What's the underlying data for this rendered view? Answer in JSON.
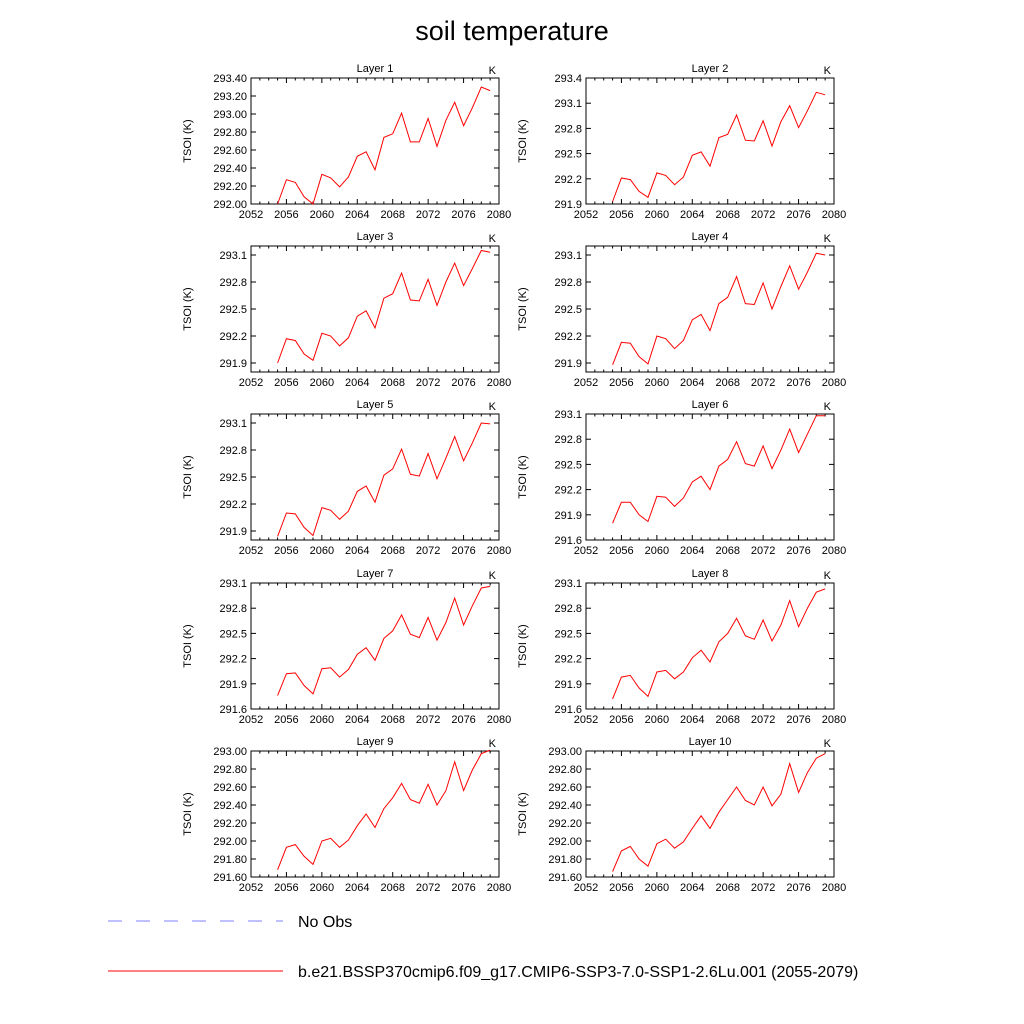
{
  "title": "soil temperature",
  "legend": {
    "obs_label": "No Obs",
    "obs_color": "#8080ff",
    "model_label": "b.e21.BSSP370cmip6.f09_g17.CMIP6-SSP3-7.0-SSP1-2.6Lu.001 (2055-2079)",
    "model_color": "#ff0000"
  },
  "chart_data": [
    {
      "type": "line",
      "title": "Layer 1",
      "unit": "K",
      "ylabel": "TSOI  (K)",
      "xlim": [
        2052,
        2080
      ],
      "x_ticks": [
        "2052",
        "2056",
        "2060",
        "2064",
        "2068",
        "2072",
        "2076",
        "2080"
      ],
      "ylim": [
        292.0,
        293.4
      ],
      "y_ticks": [
        "292.00",
        "292.20",
        "292.40",
        "292.60",
        "292.80",
        "293.00",
        "293.20",
        "293.40"
      ],
      "x": [
        2055,
        2056,
        2057,
        2058,
        2059,
        2060,
        2061,
        2062,
        2063,
        2064,
        2065,
        2066,
        2067,
        2068,
        2069,
        2070,
        2071,
        2072,
        2073,
        2074,
        2075,
        2076,
        2077,
        2078,
        2079
      ],
      "series": [
        {
          "values": [
            292.0,
            292.27,
            292.24,
            292.08,
            292.0,
            292.33,
            292.29,
            292.19,
            292.3,
            292.53,
            292.58,
            292.38,
            292.74,
            292.78,
            293.01,
            292.69,
            292.69,
            292.95,
            292.64,
            292.93,
            293.13,
            292.87,
            293.07,
            293.3,
            293.26
          ]
        }
      ]
    },
    {
      "type": "line",
      "title": "Layer 2",
      "unit": "K",
      "ylabel": "TSOI  (K)",
      "xlim": [
        2052,
        2080
      ],
      "x_ticks": [
        "2052",
        "2056",
        "2060",
        "2064",
        "2068",
        "2072",
        "2076",
        "2080"
      ],
      "ylim": [
        291.9,
        293.4
      ],
      "y_ticks": [
        "291.9",
        "292.2",
        "292.5",
        "292.8",
        "293.1",
        "293.4"
      ],
      "x": [
        2055,
        2056,
        2057,
        2058,
        2059,
        2060,
        2061,
        2062,
        2063,
        2064,
        2065,
        2066,
        2067,
        2068,
        2069,
        2070,
        2071,
        2072,
        2073,
        2074,
        2075,
        2076,
        2077,
        2078,
        2079
      ],
      "series": [
        {
          "values": [
            291.93,
            292.21,
            292.19,
            292.05,
            291.98,
            292.27,
            292.24,
            292.13,
            292.22,
            292.48,
            292.52,
            292.35,
            292.69,
            292.73,
            292.96,
            292.66,
            292.65,
            292.89,
            292.59,
            292.88,
            293.07,
            292.81,
            293.01,
            293.23,
            293.2
          ]
        }
      ]
    },
    {
      "type": "line",
      "title": "Layer 3",
      "unit": "K",
      "ylabel": "TSOI  (K)",
      "xlim": [
        2052,
        2080
      ],
      "x_ticks": [
        "2052",
        "2056",
        "2060",
        "2064",
        "2068",
        "2072",
        "2076",
        "2080"
      ],
      "ylim": [
        291.8,
        293.2
      ],
      "y_ticks": [
        "291.9",
        "292.2",
        "292.5",
        "292.8",
        "293.1"
      ],
      "x": [
        2055,
        2056,
        2057,
        2058,
        2059,
        2060,
        2061,
        2062,
        2063,
        2064,
        2065,
        2066,
        2067,
        2068,
        2069,
        2070,
        2071,
        2072,
        2073,
        2074,
        2075,
        2076,
        2077,
        2078,
        2079
      ],
      "series": [
        {
          "values": [
            291.9,
            292.17,
            292.15,
            292.0,
            291.93,
            292.23,
            292.2,
            292.09,
            292.18,
            292.42,
            292.48,
            292.29,
            292.62,
            292.67,
            292.9,
            292.6,
            292.59,
            292.83,
            292.54,
            292.8,
            293.01,
            292.76,
            292.95,
            293.15,
            293.13
          ]
        }
      ]
    },
    {
      "type": "line",
      "title": "Layer 4",
      "unit": "K",
      "ylabel": "TSOI  (K)",
      "xlim": [
        2052,
        2080
      ],
      "x_ticks": [
        "2052",
        "2056",
        "2060",
        "2064",
        "2068",
        "2072",
        "2076",
        "2080"
      ],
      "ylim": [
        291.8,
        293.2
      ],
      "y_ticks": [
        "291.9",
        "292.2",
        "292.5",
        "292.8",
        "293.1"
      ],
      "x": [
        2055,
        2056,
        2057,
        2058,
        2059,
        2060,
        2061,
        2062,
        2063,
        2064,
        2065,
        2066,
        2067,
        2068,
        2069,
        2070,
        2071,
        2072,
        2073,
        2074,
        2075,
        2076,
        2077,
        2078,
        2079
      ],
      "series": [
        {
          "values": [
            291.88,
            292.13,
            292.12,
            291.97,
            291.89,
            292.2,
            292.17,
            292.06,
            292.15,
            292.38,
            292.44,
            292.26,
            292.56,
            292.63,
            292.86,
            292.56,
            292.55,
            292.79,
            292.5,
            292.75,
            292.98,
            292.72,
            292.91,
            293.12,
            293.1
          ]
        }
      ]
    },
    {
      "type": "line",
      "title": "Layer 5",
      "unit": "K",
      "ylabel": "TSOI  (K)",
      "xlim": [
        2052,
        2080
      ],
      "x_ticks": [
        "2052",
        "2056",
        "2060",
        "2064",
        "2068",
        "2072",
        "2076",
        "2080"
      ],
      "ylim": [
        291.8,
        293.2
      ],
      "y_ticks": [
        "291.9",
        "292.2",
        "292.5",
        "292.8",
        "293.1"
      ],
      "x": [
        2055,
        2056,
        2057,
        2058,
        2059,
        2060,
        2061,
        2062,
        2063,
        2064,
        2065,
        2066,
        2067,
        2068,
        2069,
        2070,
        2071,
        2072,
        2073,
        2074,
        2075,
        2076,
        2077,
        2078,
        2079
      ],
      "series": [
        {
          "values": [
            291.84,
            292.1,
            292.09,
            291.94,
            291.85,
            292.16,
            292.13,
            292.03,
            292.12,
            292.34,
            292.4,
            292.22,
            292.52,
            292.59,
            292.81,
            292.53,
            292.51,
            292.76,
            292.48,
            292.71,
            292.95,
            292.68,
            292.88,
            293.1,
            293.09
          ]
        }
      ]
    },
    {
      "type": "line",
      "title": "Layer 6",
      "unit": "K",
      "ylabel": "TSOI  (K)",
      "xlim": [
        2052,
        2080
      ],
      "x_ticks": [
        "2052",
        "2056",
        "2060",
        "2064",
        "2068",
        "2072",
        "2076",
        "2080"
      ],
      "ylim": [
        291.6,
        293.1
      ],
      "y_ticks": [
        "291.6",
        "291.9",
        "292.2",
        "292.5",
        "292.8",
        "293.1"
      ],
      "x": [
        2055,
        2056,
        2057,
        2058,
        2059,
        2060,
        2061,
        2062,
        2063,
        2064,
        2065,
        2066,
        2067,
        2068,
        2069,
        2070,
        2071,
        2072,
        2073,
        2074,
        2075,
        2076,
        2077,
        2078,
        2079
      ],
      "series": [
        {
          "values": [
            291.8,
            292.05,
            292.05,
            291.9,
            291.82,
            292.12,
            292.11,
            292.0,
            292.1,
            292.29,
            292.36,
            292.2,
            292.48,
            292.56,
            292.77,
            292.51,
            292.48,
            292.72,
            292.45,
            292.67,
            292.92,
            292.64,
            292.86,
            293.08,
            293.08
          ]
        }
      ]
    },
    {
      "type": "line",
      "title": "Layer 7",
      "unit": "K",
      "ylabel": "TSOI  (K)",
      "xlim": [
        2052,
        2080
      ],
      "x_ticks": [
        "2052",
        "2056",
        "2060",
        "2064",
        "2068",
        "2072",
        "2076",
        "2080"
      ],
      "ylim": [
        291.6,
        293.1
      ],
      "y_ticks": [
        "291.6",
        "291.9",
        "292.2",
        "292.5",
        "292.8",
        "293.1"
      ],
      "x": [
        2055,
        2056,
        2057,
        2058,
        2059,
        2060,
        2061,
        2062,
        2063,
        2064,
        2065,
        2066,
        2067,
        2068,
        2069,
        2070,
        2071,
        2072,
        2073,
        2074,
        2075,
        2076,
        2077,
        2078,
        2079
      ],
      "series": [
        {
          "values": [
            291.76,
            292.02,
            292.03,
            291.88,
            291.78,
            292.08,
            292.09,
            291.98,
            292.07,
            292.25,
            292.33,
            292.18,
            292.44,
            292.53,
            292.72,
            292.49,
            292.45,
            292.69,
            292.42,
            292.63,
            292.92,
            292.6,
            292.83,
            293.04,
            293.06
          ]
        }
      ]
    },
    {
      "type": "line",
      "title": "Layer 8",
      "unit": "K",
      "ylabel": "TSOI  (K)",
      "xlim": [
        2052,
        2080
      ],
      "x_ticks": [
        "2052",
        "2056",
        "2060",
        "2064",
        "2068",
        "2072",
        "2076",
        "2080"
      ],
      "ylim": [
        291.6,
        293.1
      ],
      "y_ticks": [
        "291.6",
        "291.9",
        "292.2",
        "292.5",
        "292.8",
        "293.1"
      ],
      "x": [
        2055,
        2056,
        2057,
        2058,
        2059,
        2060,
        2061,
        2062,
        2063,
        2064,
        2065,
        2066,
        2067,
        2068,
        2069,
        2070,
        2071,
        2072,
        2073,
        2074,
        2075,
        2076,
        2077,
        2078,
        2079
      ],
      "series": [
        {
          "values": [
            291.72,
            291.98,
            292.0,
            291.85,
            291.75,
            292.04,
            292.06,
            291.96,
            292.04,
            292.21,
            292.3,
            292.16,
            292.4,
            292.5,
            292.68,
            292.47,
            292.43,
            292.66,
            292.41,
            292.6,
            292.89,
            292.58,
            292.8,
            292.99,
            293.03
          ]
        }
      ]
    },
    {
      "type": "line",
      "title": "Layer 9",
      "unit": "K",
      "ylabel": "TSOI  (K)",
      "xlim": [
        2052,
        2080
      ],
      "x_ticks": [
        "2052",
        "2056",
        "2060",
        "2064",
        "2068",
        "2072",
        "2076",
        "2080"
      ],
      "ylim": [
        291.6,
        293.0
      ],
      "y_ticks": [
        "291.60",
        "291.80",
        "292.00",
        "292.20",
        "292.40",
        "292.60",
        "292.80",
        "293.00"
      ],
      "x": [
        2055,
        2056,
        2057,
        2058,
        2059,
        2060,
        2061,
        2062,
        2063,
        2064,
        2065,
        2066,
        2067,
        2068,
        2069,
        2070,
        2071,
        2072,
        2073,
        2074,
        2075,
        2076,
        2077,
        2078,
        2079
      ],
      "series": [
        {
          "values": [
            291.68,
            291.93,
            291.96,
            291.83,
            291.74,
            292.0,
            292.03,
            291.93,
            292.01,
            292.17,
            292.3,
            292.15,
            292.36,
            292.48,
            292.64,
            292.46,
            292.42,
            292.63,
            292.4,
            292.56,
            292.88,
            292.56,
            292.79,
            292.97,
            293.01
          ]
        }
      ]
    },
    {
      "type": "line",
      "title": "Layer 10",
      "unit": "K",
      "ylabel": "TSOI  (K)",
      "xlim": [
        2052,
        2080
      ],
      "x_ticks": [
        "2052",
        "2056",
        "2060",
        "2064",
        "2068",
        "2072",
        "2076",
        "2080"
      ],
      "ylim": [
        291.6,
        293.0
      ],
      "y_ticks": [
        "291.60",
        "291.80",
        "292.00",
        "292.20",
        "292.40",
        "292.60",
        "292.80",
        "293.00"
      ],
      "x": [
        2055,
        2056,
        2057,
        2058,
        2059,
        2060,
        2061,
        2062,
        2063,
        2064,
        2065,
        2066,
        2067,
        2068,
        2069,
        2070,
        2071,
        2072,
        2073,
        2074,
        2075,
        2076,
        2077,
        2078,
        2079
      ],
      "series": [
        {
          "values": [
            291.66,
            291.89,
            291.94,
            291.8,
            291.72,
            291.97,
            292.02,
            291.92,
            291.99,
            292.14,
            292.28,
            292.14,
            292.32,
            292.46,
            292.6,
            292.45,
            292.4,
            292.6,
            292.39,
            292.52,
            292.86,
            292.54,
            292.76,
            292.92,
            292.97
          ]
        }
      ]
    }
  ]
}
